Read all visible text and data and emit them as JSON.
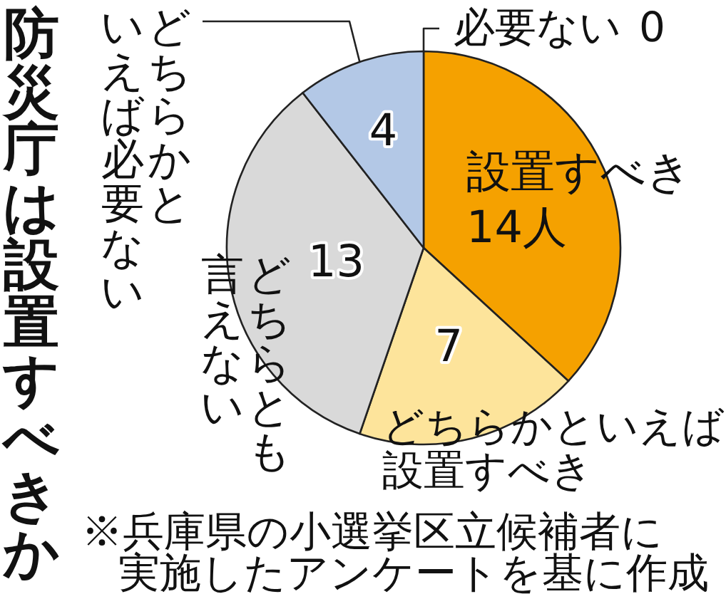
{
  "chart_data": {
    "type": "pie",
    "title": "防災庁は設置すべきか",
    "categories": [
      "設置すべき",
      "どちらかといえば設置すべき",
      "どちらとも言えない",
      "どちらかといえば必要ない",
      "必要ない"
    ],
    "values": [
      14,
      7,
      13,
      4,
      0
    ],
    "colors": [
      "#f5a100",
      "#fde49b",
      "#d9d9d9",
      "#b3c8e6",
      null
    ],
    "value_labels": [
      "14人",
      "7",
      "13",
      "4",
      "0"
    ],
    "annotations": [
      "※兵庫県の小選挙区立候補者に実施したアンケートを基に作成"
    ]
  }
}
